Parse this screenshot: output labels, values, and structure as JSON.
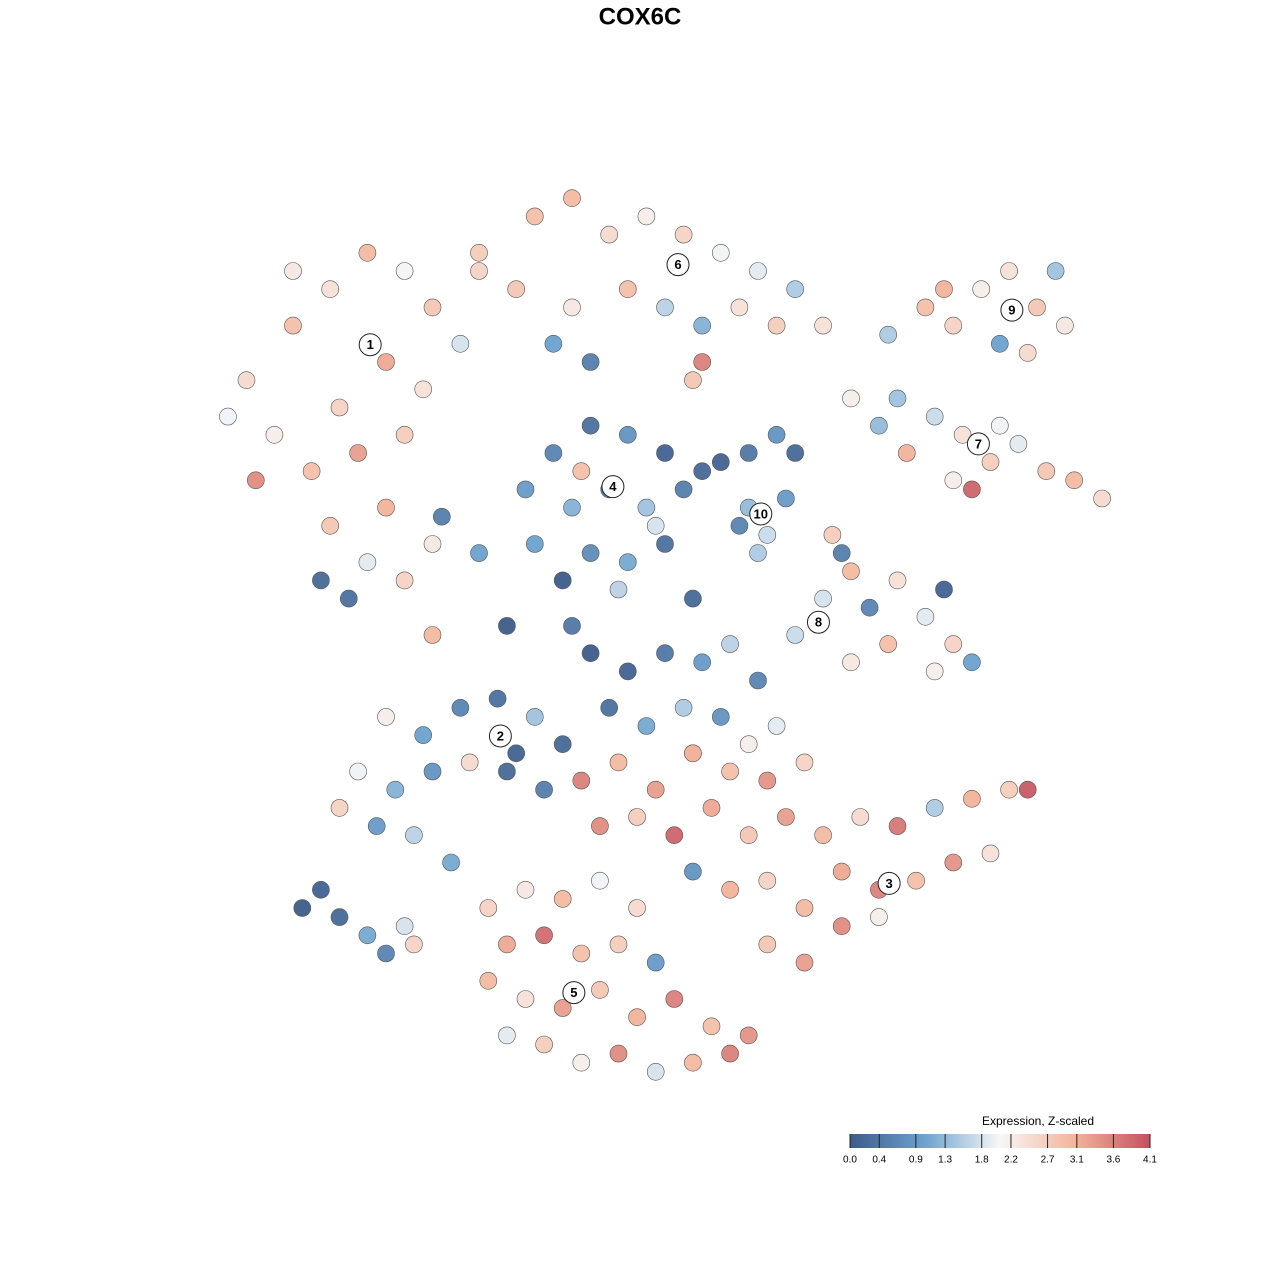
{
  "chart_data": {
    "type": "scatter",
    "title": "COX6C",
    "xlim": [
      -50,
      50
    ],
    "ylim": [
      -50,
      50
    ],
    "x": [
      -45,
      -40,
      -36,
      -32,
      -28,
      -25,
      -30,
      -35,
      -42,
      -47,
      -38,
      -33,
      -28,
      -30,
      -36,
      -25,
      -32,
      -37,
      -34,
      -28,
      -44,
      -26,
      -22,
      -20,
      -40,
      -20,
      -14,
      -10,
      -6,
      -2,
      2,
      6,
      10,
      14,
      17,
      -16,
      -10,
      -4,
      0,
      4,
      -12,
      8,
      12,
      -8,
      3,
      4,
      24,
      28,
      31,
      34,
      37,
      40,
      43,
      36,
      30,
      42,
      39,
      20,
      23,
      26,
      29,
      32,
      35,
      38,
      41,
      44,
      47,
      31,
      25,
      36,
      33,
      -15,
      -12,
      -8,
      -4,
      0,
      -10,
      -6,
      -2,
      2,
      -14,
      -8,
      -4,
      0,
      -11,
      -5,
      4,
      -1,
      -9,
      6,
      9,
      12,
      14,
      9,
      11,
      13,
      10,
      8,
      18,
      20,
      17,
      22,
      25,
      28,
      31,
      29,
      33,
      24,
      20,
      30,
      14,
      19,
      -4,
      0,
      4,
      7,
      10,
      -6,
      -2,
      2,
      6,
      9,
      12,
      -8,
      3,
      -30,
      -26,
      -22,
      -18,
      -14,
      -33,
      -29,
      -25,
      -21,
      -35,
      -31,
      -27,
      -23,
      -17,
      -13,
      -39,
      -37,
      -35,
      -32,
      -30,
      -28,
      -27,
      -9,
      -5,
      -1,
      3,
      7,
      11,
      15,
      -7,
      -3,
      1,
      5,
      9,
      13,
      17,
      21,
      25,
      29,
      33,
      37,
      39,
      19,
      23,
      27,
      31,
      35,
      15,
      19,
      23,
      11,
      15,
      3,
      7,
      11,
      -19,
      -15,
      -11,
      -7,
      -3,
      -17,
      -13,
      -9,
      -5,
      -1,
      -19,
      -15,
      -11,
      -7,
      -3,
      1,
      5,
      9,
      -13,
      -9,
      -5,
      -1,
      3,
      7,
      -17,
      -25,
      -17,
      -10,
      3,
      -24,
      -20,
      -16,
      -11
    ],
    "y": [
      28,
      34,
      38,
      42,
      40,
      36,
      30,
      25,
      22,
      24,
      18,
      20,
      22,
      14,
      12,
      10,
      8,
      6,
      4,
      6,
      17,
      27,
      32,
      40,
      40,
      42,
      46,
      48,
      44,
      46,
      44,
      42,
      40,
      38,
      34,
      38,
      36,
      38,
      36,
      34,
      32,
      36,
      34,
      30,
      28,
      30,
      33,
      36,
      34,
      38,
      40,
      36,
      34,
      32,
      38,
      40,
      31,
      26,
      23,
      20,
      24,
      22,
      19,
      21,
      18,
      17,
      15,
      17,
      26,
      23,
      16,
      16,
      20,
      23,
      22,
      20,
      14,
      16,
      14,
      16,
      10,
      9,
      8,
      10,
      6,
      5,
      18,
      12,
      18,
      19,
      20,
      22,
      20,
      14,
      11,
      15,
      9,
      12,
      11,
      7,
      4,
      3,
      6,
      2,
      -1,
      -4,
      -3,
      -1,
      -3,
      5,
      0,
      9,
      -4,
      -2,
      -3,
      -1,
      -5,
      -8,
      -10,
      -8,
      -9,
      -12,
      -10,
      -2,
      -13,
      -9,
      -11,
      -8,
      -7,
      -9,
      -15,
      -17,
      -15,
      -14,
      -19,
      -21,
      -22,
      -25,
      -15,
      -17,
      -30,
      -28,
      -31,
      -33,
      -35,
      -32,
      -34,
      -16,
      -14,
      -17,
      -13,
      -15,
      -16,
      -14,
      -21,
      -20,
      -22,
      -19,
      -22,
      -20,
      -22,
      -20,
      -21,
      -19,
      -18,
      -17,
      -17,
      -26,
      -28,
      -27,
      -25,
      -24,
      -30,
      -32,
      -31,
      -34,
      -36,
      -26,
      -28,
      -27,
      -30,
      -28,
      -29,
      -27,
      -30,
      -34,
      -33,
      -35,
      -34,
      -36,
      -38,
      -40,
      -41,
      -39,
      -42,
      -40,
      -43,
      -44,
      -45,
      -47,
      -46,
      -48,
      -47,
      -46,
      -44,
      0,
      1,
      1,
      4,
      13,
      9,
      -13,
      -12
    ],
    "values": [
      2.5,
      2.9,
      2.4,
      3.0,
      2.1,
      2.8,
      3.2,
      2.6,
      2.2,
      2.0,
      2.9,
      3.3,
      2.7,
      3.1,
      2.8,
      2.3,
      1.9,
      0.2,
      0.3,
      2.6,
      3.5,
      2.4,
      1.8,
      2.6,
      2.3,
      2.7,
      2.9,
      3.0,
      2.5,
      2.2,
      2.6,
      2.0,
      1.9,
      1.5,
      2.4,
      2.8,
      2.3,
      2.9,
      1.6,
      1.2,
      1.0,
      2.4,
      2.7,
      0.5,
      2.8,
      3.6,
      1.5,
      2.9,
      2.6,
      2.2,
      2.4,
      2.8,
      2.3,
      1.0,
      3.1,
      1.4,
      2.5,
      2.2,
      1.3,
      3.1,
      1.7,
      2.4,
      2.7,
      1.9,
      2.8,
      3.0,
      2.5,
      2.2,
      1.4,
      2.0,
      3.9,
      0.9,
      0.6,
      0.3,
      0.8,
      0.1,
      1.2,
      0.4,
      1.4,
      0.5,
      1.0,
      0.7,
      1.1,
      0.3,
      0.0,
      1.6,
      0.2,
      1.8,
      2.9,
      0.1,
      0.4,
      0.8,
      0.2,
      1.3,
      1.7,
      0.9,
      1.5,
      0.6,
      2.7,
      3.0,
      1.8,
      0.6,
      2.4,
      1.9,
      2.6,
      2.2,
      1.0,
      2.9,
      2.3,
      0.1,
      1.7,
      0.5,
      0.1,
      0.4,
      0.9,
      1.6,
      0.6,
      0.3,
      1.1,
      1.5,
      0.8,
      2.2,
      1.9,
      0.0,
      2.9,
      2.2,
      1.0,
      0.6,
      0.3,
      1.4,
      2.0,
      1.2,
      0.8,
      2.5,
      2.6,
      0.9,
      1.6,
      1.1,
      0.2,
      0.5,
      0.0,
      0.1,
      0.2,
      1.1,
      0.6,
      1.8,
      2.6,
      3.6,
      3.0,
      3.3,
      3.1,
      2.9,
      3.4,
      2.6,
      3.5,
      2.7,
      3.9,
      3.2,
      2.8,
      3.3,
      3.0,
      2.5,
      3.7,
      1.5,
      3.1,
      2.7,
      4.0,
      3.2,
      3.6,
      2.9,
      3.4,
      2.4,
      3.0,
      3.5,
      2.2,
      2.8,
      3.3,
      0.8,
      3.1,
      2.6,
      2.6,
      2.3,
      3.0,
      2.0,
      2.5,
      3.2,
      3.8,
      2.9,
      2.7,
      0.9,
      3.0,
      2.4,
      3.3,
      2.8,
      3.1,
      3.6,
      2.9,
      3.4,
      2.7,
      2.2,
      3.5,
      1.8,
      3.0,
      3.6,
      1.9,
      3.0,
      0.0,
      0.4,
      0.2,
      0.5,
      1.0,
      0.1,
      0.2
    ],
    "clusters": {
      "labels": [
        "1",
        "6",
        "9",
        "4",
        "7",
        "10",
        "8",
        "2",
        "3",
        "5"
      ],
      "x": [
        -31.7,
        1.4,
        37.3,
        -5.6,
        33.7,
        10.3,
        16.5,
        -17.7,
        24.1,
        -9.8
      ],
      "y": [
        31.9,
        40.7,
        35.7,
        16.3,
        21,
        13.3,
        1.4,
        -11.1,
        -27.3,
        -39.3
      ]
    },
    "colorscale": [
      "#3d5b8a",
      "#6da3cf",
      "#f7f7f7",
      "#f3b49a",
      "#c4505e"
    ],
    "colorbar": {
      "title": "Expression, Z-scaled",
      "lim": [
        0,
        4.1
      ],
      "ticks": [
        {
          "value": 0,
          "label": "0.0"
        },
        0.4,
        0.9,
        1.3,
        1.8,
        2.2,
        2.7,
        3.1,
        3.6,
        4.1
      ]
    }
  }
}
